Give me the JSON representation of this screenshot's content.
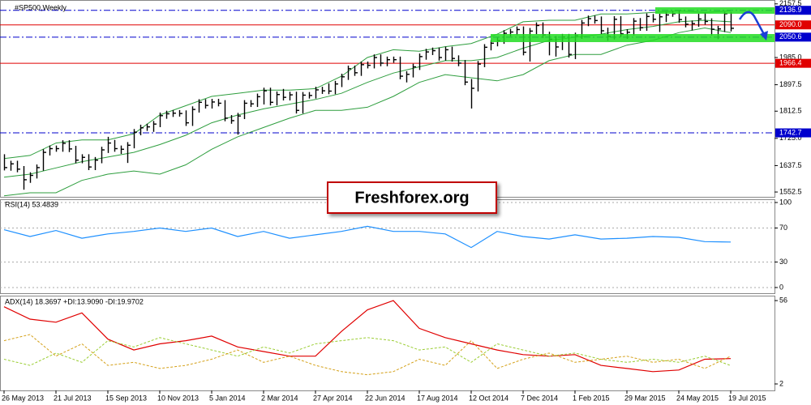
{
  "watermark": "Freshforex.org",
  "chart_data": [
    {
      "type": "ohlc",
      "title": "#SP500,Weekly",
      "color": "#000000",
      "xlim": [
        -0.625,
        118.75
      ],
      "ylim": [
        1537,
        2170
      ],
      "yticks": [
        2157.5,
        {
          "value": 1985,
          "label": "1985.0"
        },
        1897.5,
        1812.5,
        {
          "value": 1725,
          "label": "1725.0"
        },
        1637.5,
        1552.5
      ],
      "high": [
        1674,
        1653,
        1653,
        1636,
        1616,
        1641,
        1690,
        1702,
        1702,
        1719,
        1719,
        1701,
        1674,
        1674,
        1665,
        1698,
        1730,
        1720,
        1702,
        1713,
        1755,
        1769,
        1772,
        1781,
        1808,
        1814,
        1816,
        1816,
        1815,
        1828,
        1851,
        1851,
        1852,
        1852,
        1848,
        1800,
        1807,
        1848,
        1848,
        1869,
        1888,
        1888,
        1876,
        1884,
        1875,
        1875,
        1874,
        1874,
        1891,
        1891,
        1902,
        1910,
        1933,
        1959,
        1959,
        1972,
        1972,
        1995,
        1995,
        1988,
        1988,
        1988,
        1941,
        1965,
        1998,
        2013,
        2017,
        2017,
        2020,
        2020,
        1992,
        1977,
        1916,
        1974,
        2028,
        2041,
        2049,
        2073,
        2077,
        2085,
        2085,
        2080,
        2098,
        2098,
        2068,
        2054,
        2061,
        2061,
        2065,
        2106,
        2120,
        2120,
        2117,
        2081,
        2118,
        2118,
        2076,
        2112,
        2112,
        2127,
        2125,
        2126,
        2132,
        2135,
        2136,
        2117,
        2104,
        2126,
        2129,
        2111,
        2087,
        2132,
        2132
      ],
      "low": [
        1622,
        1621,
        1616,
        1560,
        1582,
        1596,
        1621,
        1670,
        1682,
        1682,
        1681,
        1645,
        1645,
        1623,
        1623,
        1645,
        1678,
        1682,
        1675,
        1646,
        1693,
        1735,
        1749,
        1746,
        1761,
        1788,
        1794,
        1795,
        1765,
        1765,
        1808,
        1821,
        1821,
        1828,
        1780,
        1772,
        1737,
        1787,
        1826,
        1826,
        1834,
        1831,
        1831,
        1847,
        1847,
        1805,
        1805,
        1853,
        1853,
        1868,
        1867,
        1867,
        1890,
        1913,
        1926,
        1926,
        1950,
        1950,
        1957,
        1957,
        1968,
        1915,
        1905,
        1921,
        1945,
        1978,
        1993,
        1975,
        1975,
        1972,
        1957,
        1896,
        1821,
        1876,
        1954,
        2008,
        2021,
        2029,
        2053,
        2057,
        1992,
        1972,
        2060,
        2048,
        1992,
        1988,
        2009,
        1985,
        1980,
        2045,
        2086,
        2094,
        2061,
        2039,
        2043,
        2051,
        2045,
        2056,
        2071,
        2071,
        2098,
        2067,
        2099,
        2116,
        2097,
        2082,
        2072,
        2084,
        2091,
        2056,
        2044,
        2067,
        2069
      ],
      "close": [
        1631,
        1643,
        1626,
        1592,
        1606,
        1631,
        1680,
        1692,
        1692,
        1709,
        1691,
        1655,
        1664,
        1633,
        1655,
        1688,
        1710,
        1692,
        1690,
        1703,
        1745,
        1759,
        1762,
        1771,
        1798,
        1804,
        1806,
        1805,
        1775,
        1818,
        1841,
        1831,
        1842,
        1838,
        1790,
        1782,
        1797,
        1838,
        1836,
        1859,
        1878,
        1841,
        1866,
        1857,
        1865,
        1815,
        1864,
        1863,
        1881,
        1878,
        1877,
        1900,
        1923,
        1949,
        1936,
        1962,
        1960,
        1985,
        1967,
        1978,
        1978,
        1925,
        1931,
        1955,
        1988,
        2003,
        2007,
        1985,
        2010,
        1982,
        1967,
        1906,
        1886,
        1964,
        2018,
        2031,
        2039,
        2063,
        2067,
        2075,
        2002,
        2070,
        2088,
        2058,
        2044,
        2019,
        2051,
        1995,
        2055,
        2096,
        2110,
        2104,
        2071,
        2053,
        2108,
        2061,
        2066,
        2102,
        2081,
        2117,
        2108,
        2116,
        2122,
        2126,
        2107,
        2092,
        2094,
        2109,
        2101,
        2076,
        2077,
        2126,
        2079
      ],
      "bands": {
        "color": "#2e9e3e",
        "x": [
          0,
          4,
          8,
          12,
          16,
          20,
          24,
          28,
          32,
          36,
          40,
          44,
          48,
          52,
          56,
          60,
          64,
          68,
          72,
          76,
          80,
          84,
          88,
          92,
          96,
          100,
          104,
          108,
          112
        ],
        "upper": [
          1660,
          1670,
          1710,
          1720,
          1720,
          1740,
          1800,
          1830,
          1860,
          1870,
          1880,
          1880,
          1885,
          1925,
          1985,
          2010,
          2005,
          2020,
          2030,
          2060,
          2100,
          2105,
          2105,
          2125,
          2125,
          2130,
          2135,
          2130,
          2135
        ],
        "middle": [
          1600,
          1610,
          1630,
          1650,
          1665,
          1680,
          1705,
          1735,
          1775,
          1800,
          1820,
          1835,
          1850,
          1870,
          1905,
          1935,
          1955,
          1975,
          1975,
          1985,
          2015,
          2040,
          2050,
          2060,
          2075,
          2085,
          2100,
          2105,
          2100
        ],
        "lower": [
          1540,
          1550,
          1550,
          1590,
          1610,
          1620,
          1610,
          1640,
          1690,
          1730,
          1760,
          1790,
          1815,
          1815,
          1825,
          1860,
          1905,
          1930,
          1920,
          1910,
          1930,
          1975,
          1995,
          1995,
          2025,
          2040,
          2065,
          2080,
          2065
        ]
      },
      "levels": [
        {
          "value": 2136.9,
          "color": "#0000cd",
          "style": "dashdot"
        },
        {
          "value": 2090,
          "label": "2090.0",
          "color": "#e00000",
          "style": "solid"
        },
        {
          "value": 2050.6,
          "color": "#0000cd",
          "style": "dashdot"
        },
        {
          "value": 1966.4,
          "color": "#e00000",
          "style": "solid"
        },
        {
          "value": 1742.7,
          "color": "#0000cd",
          "style": "dashdot"
        }
      ]
    },
    {
      "type": "line",
      "title": "RSI(14) 53.4839",
      "grid": true,
      "xlim": [
        -0.625,
        118.75
      ],
      "ylim": [
        -6.7,
        103.8
      ],
      "yticks": [
        100,
        70,
        30,
        0
      ],
      "x": [
        0,
        4,
        8,
        12,
        16,
        20,
        24,
        28,
        32,
        36,
        40,
        44,
        48,
        52,
        56,
        60,
        64,
        68,
        72,
        76,
        80,
        84,
        88,
        92,
        96,
        100,
        104,
        108,
        112
      ],
      "series": [
        {
          "color": "#1e90ff",
          "values": [
            68,
            60,
            67,
            58,
            63,
            66,
            70,
            66,
            70,
            60,
            66,
            58,
            62,
            66,
            72,
            66,
            66,
            63,
            47,
            66,
            60,
            57,
            62,
            57,
            58,
            60,
            59,
            54,
            53.5
          ]
        }
      ]
    },
    {
      "type": "line",
      "title": "ADX(14) 18.3697 +DI:13.9090 -DI:19.9702",
      "xlim": [
        -0.625,
        118.75
      ],
      "ylim": [
        -2.2,
        59.2
      ],
      "yticks": [
        56,
        2
      ],
      "xticks": [
        {
          "value": 0,
          "label": "26 May 2013"
        },
        {
          "value": 8,
          "label": "21 Jul 2013"
        },
        {
          "value": 16,
          "label": "15 Sep 2013"
        },
        {
          "value": 24,
          "label": "10 Nov 2013"
        },
        {
          "value": 32,
          "label": "5 Jan 2014"
        },
        {
          "value": 40,
          "label": "2 Mar 2014"
        },
        {
          "value": 48,
          "label": "27 Apr 2014"
        },
        {
          "value": 56,
          "label": "22 Jun 2014"
        },
        {
          "value": 64,
          "label": "17 Aug 2014"
        },
        {
          "value": 72,
          "label": "12 Oct 2014"
        },
        {
          "value": 80,
          "label": "7 Dec 2014"
        },
        {
          "value": 88,
          "label": "1 Feb 2015"
        },
        {
          "value": 96,
          "label": "29 Mar 2015"
        },
        {
          "value": 104,
          "label": "24 May 2015"
        },
        {
          "value": 112,
          "label": "19 Jul 2015"
        }
      ],
      "x": [
        0,
        4,
        8,
        12,
        16,
        20,
        24,
        28,
        32,
        36,
        40,
        44,
        48,
        52,
        56,
        60,
        64,
        68,
        72,
        76,
        80,
        84,
        88,
        92,
        96,
        100,
        104,
        108,
        112
      ],
      "series": [
        {
          "color": "#e00000",
          "values": [
            52,
            44,
            42,
            48,
            31,
            24,
            28,
            30,
            33,
            26,
            23,
            20,
            20,
            36,
            50,
            56,
            38,
            32,
            28,
            24,
            21,
            20,
            21,
            14,
            12,
            10,
            11,
            18,
            18.4
          ]
        },
        {
          "color": "#9acd32",
          "dashed": true,
          "values": [
            18,
            14,
            22,
            16,
            30,
            26,
            32,
            28,
            24,
            20,
            26,
            22,
            28,
            30,
            32,
            30,
            24,
            26,
            16,
            28,
            24,
            20,
            22,
            18,
            16,
            18,
            16,
            20,
            13.9
          ]
        },
        {
          "color": "#d4a017",
          "dashed": true,
          "values": [
            30,
            34,
            20,
            28,
            14,
            16,
            12,
            14,
            18,
            24,
            16,
            20,
            14,
            10,
            8,
            10,
            18,
            14,
            30,
            12,
            18,
            22,
            16,
            18,
            20,
            16,
            18,
            12,
            20
          ]
        }
      ]
    }
  ]
}
